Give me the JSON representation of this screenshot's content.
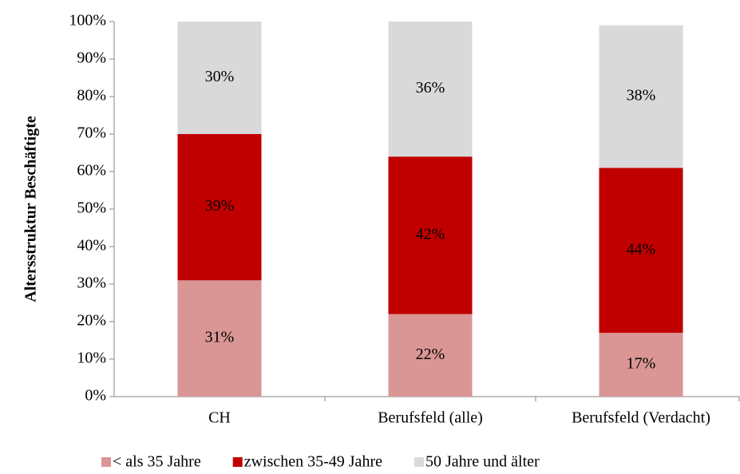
{
  "chart_data": {
    "type": "stacked_bar",
    "y_axis_label": "Altersstruktur Beschäftigte",
    "categories": [
      "CH",
      "Berufsfeld (alle)",
      "Berufsfeld (Verdacht)"
    ],
    "series": [
      {
        "name": "< als 35 Jahre",
        "color": "#d99694",
        "values": [
          31,
          22,
          17
        ],
        "value_labels": [
          "31%",
          "22%",
          "17%"
        ]
      },
      {
        "name": "zwischen 35-49 Jahre",
        "color": "#c00000",
        "values": [
          39,
          42,
          44
        ],
        "value_labels": [
          "39%",
          "42%",
          "44%"
        ]
      },
      {
        "name": "50 Jahre und älter",
        "color": "#d9d9d9",
        "values": [
          30,
          36,
          38
        ],
        "value_labels": [
          "30%",
          "36%",
          "38%"
        ]
      }
    ],
    "ylim": [
      0,
      100
    ],
    "yticks": [
      {
        "value": 0,
        "label": "0%"
      },
      {
        "value": 10,
        "label": "10%"
      },
      {
        "value": 20,
        "label": "20%"
      },
      {
        "value": 30,
        "label": "30%"
      },
      {
        "value": 40,
        "label": "40%"
      },
      {
        "value": 50,
        "label": "50%"
      },
      {
        "value": 60,
        "label": "60%"
      },
      {
        "value": 70,
        "label": "70%"
      },
      {
        "value": 80,
        "label": "80%"
      },
      {
        "value": 90,
        "label": "90%"
      },
      {
        "value": 100,
        "label": "100%"
      }
    ],
    "legend": "bottom"
  }
}
